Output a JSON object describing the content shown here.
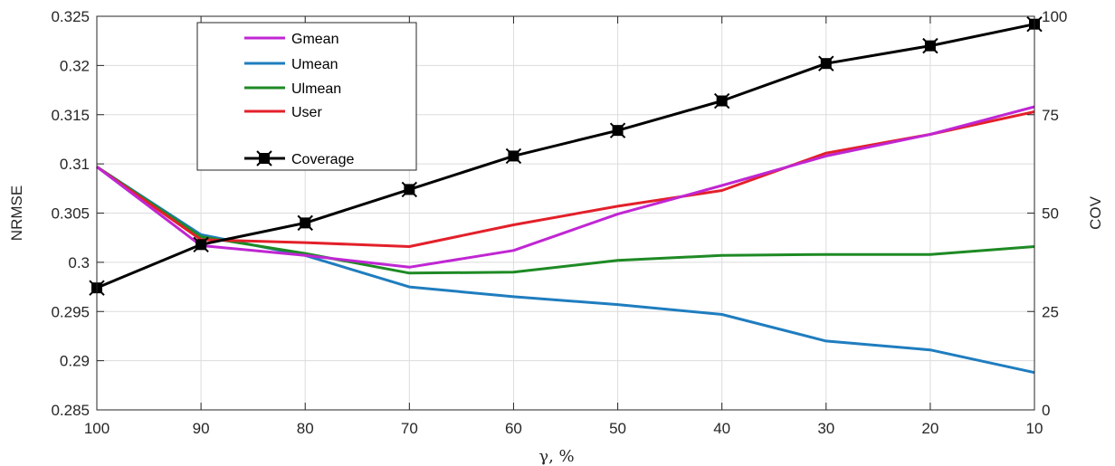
{
  "chart_data": {
    "type": "line",
    "title": "",
    "xlabel": "γ, %",
    "ylabel": "NRMSE",
    "y2label": "COV",
    "x": [
      100,
      90,
      80,
      70,
      60,
      50,
      40,
      30,
      20,
      10
    ],
    "x_reversed": true,
    "xticks": [
      "100",
      "90",
      "80",
      "70",
      "60",
      "50",
      "40",
      "30",
      "20",
      "10"
    ],
    "ylim": [
      0.285,
      0.325
    ],
    "yticks": [
      "0.285",
      "0.29",
      "0.295",
      "0.3",
      "0.305",
      "0.31",
      "0.315",
      "0.32",
      "0.325"
    ],
    "y2lim": [
      0,
      100
    ],
    "y2ticks": [
      "0",
      "25",
      "50",
      "75",
      "100"
    ],
    "grid": true,
    "legend_position": "top-left",
    "series": [
      {
        "name": "Gmean",
        "axis": "left",
        "color": "#c026d3",
        "values": [
          0.3097,
          0.3017,
          0.3007,
          0.2995,
          0.3012,
          0.3049,
          0.3078,
          0.3108,
          0.313,
          0.3158
        ]
      },
      {
        "name": "Umean",
        "axis": "left",
        "color": "#1f7dbf",
        "values": [
          0.3097,
          0.3028,
          0.3007,
          0.2975,
          0.2965,
          0.2957,
          0.2947,
          0.292,
          0.2911,
          0.2888
        ]
      },
      {
        "name": "Ulmean",
        "axis": "left",
        "color": "#1e8a24",
        "values": [
          0.3097,
          0.3026,
          0.3009,
          0.2989,
          0.299,
          0.3002,
          0.3007,
          0.3008,
          0.3008,
          0.3016
        ]
      },
      {
        "name": "User",
        "axis": "left",
        "color": "#e3202a",
        "values": [
          0.3097,
          0.3023,
          0.302,
          0.3016,
          0.3038,
          0.3057,
          0.3073,
          0.3111,
          0.313,
          0.3153
        ]
      },
      {
        "name": "Coverage",
        "axis": "right",
        "color": "#000000",
        "marker": "square",
        "values": [
          31,
          42,
          47.5,
          56,
          64.5,
          71,
          78.5,
          88,
          92.5,
          98
        ]
      }
    ]
  }
}
